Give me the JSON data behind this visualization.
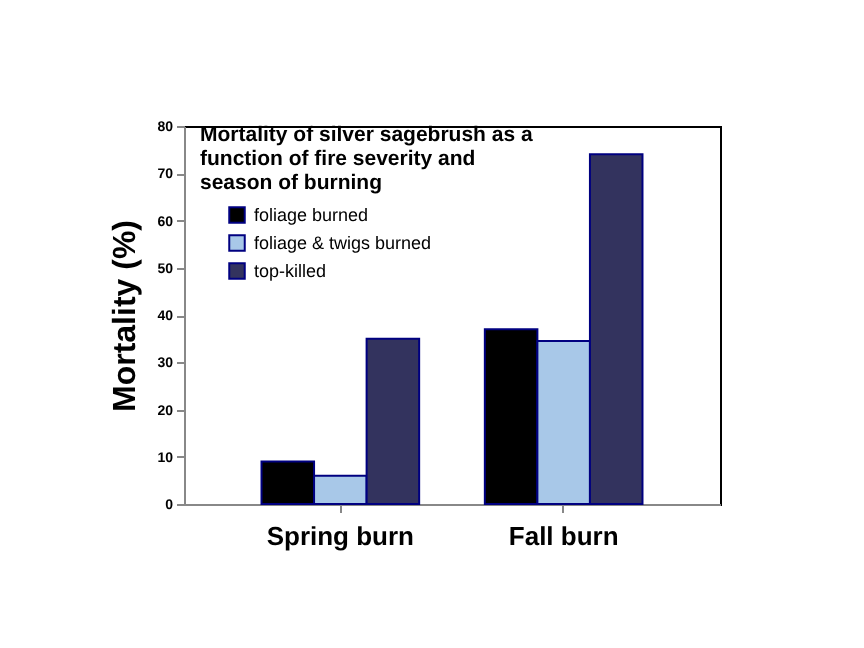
{
  "chart_data": {
    "type": "bar",
    "title": "Mortality of silver sagebrush as a function of fire severity and season of burning",
    "ylabel": "Mortality (%)",
    "categories": [
      "Spring burn",
      "Fall burn"
    ],
    "series": [
      {
        "name": "foliage burned",
        "color": "#000000",
        "values": [
          9,
          37
        ]
      },
      {
        "name": "foliage & twigs burned",
        "color": "#a8c8e8",
        "values": [
          6,
          34.5
        ]
      },
      {
        "name": "top-killed",
        "color": "#33335e",
        "values": [
          35,
          74
        ]
      }
    ],
    "ylim": [
      0,
      80
    ],
    "yticks": [
      0,
      10,
      20,
      30,
      40,
      50,
      60,
      70,
      80
    ],
    "grid": false,
    "legend": "top left"
  }
}
